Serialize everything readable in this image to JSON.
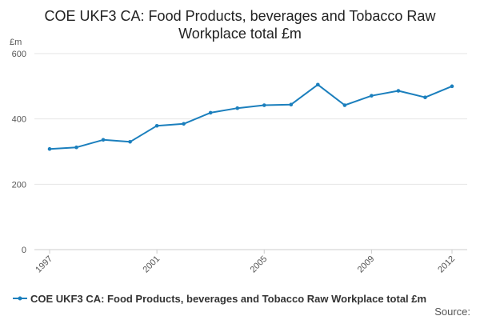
{
  "chart_data": {
    "type": "line",
    "title_lines": [
      "COE UKF3 CA: Food Products, beverages and Tobacco Raw",
      "Workplace total £m"
    ],
    "ylabel": "£m",
    "xlabel": "",
    "ylim": [
      0,
      600
    ],
    "yticks": [
      "0",
      "200",
      "400",
      "600"
    ],
    "xticks": [
      "1997",
      "2001",
      "2005",
      "2009",
      "2012"
    ],
    "x": [
      1997,
      1998,
      1999,
      2000,
      2001,
      2002,
      2003,
      2004,
      2005,
      2006,
      2007,
      2008,
      2009,
      2010,
      2011,
      2012
    ],
    "series": [
      {
        "name": "COE UKF3 CA: Food Products, beverages and Tobacco Raw Workplace total £m",
        "color": "#1b7fbd",
        "values": [
          308,
          313,
          336,
          330,
          379,
          385,
          419,
          433,
          442,
          444,
          505,
          442,
          471,
          486,
          466,
          500
        ]
      }
    ],
    "grid": true,
    "legend": "bottom"
  },
  "source_label": "Source:"
}
